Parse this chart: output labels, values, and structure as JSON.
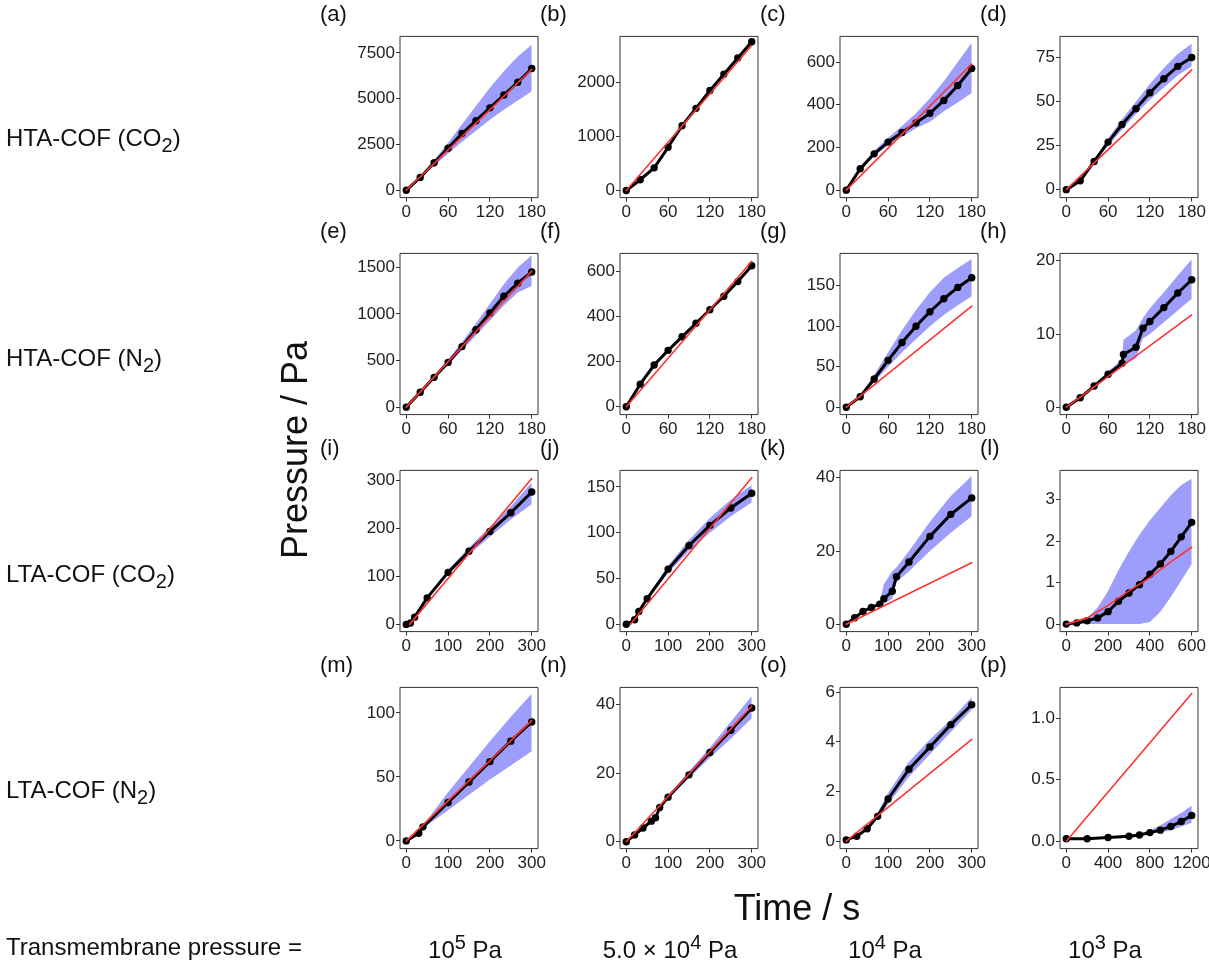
{
  "chart_data": [
    {
      "type": "line",
      "title": "(a)",
      "xlim": [
        -9,
        189
      ],
      "xticks": [
        0,
        60,
        120,
        180
      ],
      "ylim": [
        -400,
        8400
      ],
      "yticks": [
        0,
        2500,
        5000,
        7500
      ],
      "series": [
        {
          "color": "#000000",
          "marker": "circle",
          "x": [
            0,
            20,
            40,
            60,
            80,
            100,
            120,
            140,
            160,
            180
          ],
          "values": [
            0,
            700,
            1500,
            2300,
            3100,
            3800,
            4500,
            5200,
            5900,
            6650
          ],
          "lower": [
            0,
            650,
            1350,
            2000,
            2650,
            3250,
            3850,
            4400,
            4900,
            5400
          ],
          "upper": [
            0,
            750,
            1650,
            2600,
            3600,
            4600,
            5600,
            6500,
            7300,
            7950
          ]
        },
        {
          "color": "#ff3333",
          "x": [
            0,
            180
          ],
          "values": [
            0,
            6600
          ]
        }
      ]
    },
    {
      "type": "line",
      "title": "(b)",
      "xlim": [
        -9,
        189
      ],
      "xticks": [
        0,
        60,
        120,
        180
      ],
      "ylim": [
        -130,
        2850
      ],
      "yticks": [
        0,
        1000,
        2000
      ],
      "series": [
        {
          "color": "#000000",
          "marker": "circle",
          "x": [
            0,
            20,
            40,
            60,
            80,
            100,
            120,
            140,
            160,
            180
          ],
          "values": [
            0,
            200,
            420,
            800,
            1200,
            1520,
            1850,
            2150,
            2450,
            2750
          ]
        },
        {
          "color": "#ff3333",
          "x": [
            0,
            180
          ],
          "values": [
            0,
            2680
          ]
        }
      ]
    },
    {
      "type": "line",
      "title": "(c)",
      "xlim": [
        -9,
        189
      ],
      "xticks": [
        0,
        60,
        120,
        180
      ],
      "ylim": [
        -35,
        720
      ],
      "yticks": [
        0,
        200,
        400,
        600
      ],
      "series": [
        {
          "color": "#000000",
          "marker": "circle",
          "x": [
            0,
            20,
            40,
            60,
            80,
            100,
            120,
            140,
            160,
            180
          ],
          "values": [
            0,
            100,
            170,
            225,
            270,
            315,
            360,
            420,
            490,
            570
          ],
          "lower": [
            0,
            90,
            160,
            210,
            250,
            290,
            320,
            370,
            410,
            455
          ],
          "upper": [
            0,
            110,
            185,
            245,
            300,
            360,
            430,
            510,
            600,
            690
          ]
        },
        {
          "color": "#ff3333",
          "x": [
            0,
            180
          ],
          "values": [
            0,
            590
          ]
        }
      ]
    },
    {
      "type": "line",
      "title": "(d)",
      "xlim": [
        -9,
        189
      ],
      "xticks": [
        0,
        60,
        120,
        180
      ],
      "ylim": [
        -4.5,
        87
      ],
      "yticks": [
        0,
        25,
        50,
        75
      ],
      "series": [
        {
          "color": "#000000",
          "marker": "circle",
          "x": [
            0,
            20,
            40,
            60,
            80,
            100,
            120,
            140,
            160,
            180
          ],
          "values": [
            0,
            5,
            16,
            27,
            37,
            46,
            55,
            63,
            70,
            75
          ],
          "lower": [
            0,
            5,
            15,
            25,
            34,
            43,
            51,
            58,
            65,
            70
          ],
          "upper": [
            0,
            5,
            17,
            29,
            40,
            50,
            60,
            69,
            77,
            83
          ]
        },
        {
          "color": "#ff3333",
          "x": [
            0,
            180
          ],
          "values": [
            0,
            68
          ]
        }
      ]
    },
    {
      "type": "line",
      "title": "(e)",
      "xlim": [
        -9,
        189
      ],
      "xticks": [
        0,
        60,
        120,
        180
      ],
      "ylim": [
        -80,
        1650
      ],
      "yticks": [
        0,
        500,
        1000,
        1500
      ],
      "series": [
        {
          "color": "#000000",
          "marker": "circle",
          "x": [
            0,
            20,
            40,
            60,
            80,
            100,
            120,
            140,
            160,
            180
          ],
          "values": [
            0,
            160,
            320,
            480,
            650,
            830,
            1010,
            1190,
            1330,
            1450
          ],
          "lower": [
            0,
            160,
            310,
            450,
            610,
            770,
            930,
            1090,
            1230,
            1300
          ],
          "upper": [
            0,
            170,
            340,
            510,
            700,
            900,
            1110,
            1320,
            1500,
            1630
          ]
        },
        {
          "color": "#ff3333",
          "x": [
            0,
            180
          ],
          "values": [
            0,
            1460
          ]
        }
      ]
    },
    {
      "type": "line",
      "title": "(f)",
      "xlim": [
        -9,
        189
      ],
      "xticks": [
        0,
        60,
        120,
        180
      ],
      "ylim": [
        -35,
        680
      ],
      "yticks": [
        0,
        200,
        400,
        600
      ],
      "series": [
        {
          "color": "#000000",
          "marker": "circle",
          "x": [
            0,
            20,
            40,
            60,
            80,
            100,
            120,
            140,
            160,
            180
          ],
          "values": [
            0,
            100,
            185,
            250,
            310,
            370,
            430,
            490,
            555,
            625
          ]
        },
        {
          "color": "#ff3333",
          "x": [
            0,
            180
          ],
          "values": [
            0,
            645
          ]
        }
      ]
    },
    {
      "type": "line",
      "title": "(g)",
      "xlim": [
        -9,
        189
      ],
      "xticks": [
        0,
        60,
        120,
        180
      ],
      "ylim": [
        -9,
        190
      ],
      "yticks": [
        0,
        50,
        100,
        150
      ],
      "series": [
        {
          "color": "#000000",
          "marker": "circle",
          "x": [
            0,
            20,
            40,
            60,
            80,
            100,
            120,
            140,
            160,
            180
          ],
          "values": [
            0,
            13,
            35,
            58,
            80,
            100,
            118,
            134,
            148,
            160
          ],
          "lower": [
            0,
            12,
            31,
            50,
            68,
            84,
            100,
            114,
            126,
            137
          ],
          "upper": [
            0,
            14,
            40,
            68,
            95,
            120,
            142,
            160,
            172,
            183
          ]
        },
        {
          "color": "#ff3333",
          "x": [
            0,
            180
          ],
          "values": [
            0,
            125
          ]
        }
      ]
    },
    {
      "type": "line",
      "title": "(h)",
      "xlim": [
        -9,
        189
      ],
      "xticks": [
        0,
        60,
        120,
        180
      ],
      "ylim": [
        -1,
        21
      ],
      "yticks": [
        0,
        10,
        20
      ],
      "series": [
        {
          "color": "#000000",
          "marker": "circle",
          "x": [
            0,
            20,
            40,
            60,
            80,
            82,
            100,
            110,
            120,
            140,
            160,
            180
          ],
          "values": [
            0,
            1.3,
            2.9,
            4.5,
            6,
            7.2,
            8.2,
            10.8,
            11.7,
            13.6,
            15.6,
            17.4
          ],
          "lower": [
            0,
            1.2,
            2.7,
            4.1,
            5.5,
            5.8,
            6.7,
            9.4,
            10,
            11.6,
            13.2,
            14.8
          ],
          "upper": [
            0,
            1.4,
            3.1,
            4.9,
            6.5,
            9.2,
            10.5,
            12.2,
            13.5,
            15.7,
            18,
            20.2
          ]
        },
        {
          "color": "#ff3333",
          "x": [
            0,
            180
          ],
          "values": [
            0,
            12.6
          ]
        }
      ]
    },
    {
      "type": "line",
      "title": "(i)",
      "xlim": [
        -15,
        315
      ],
      "xticks": [
        0,
        100,
        200,
        300
      ],
      "ylim": [
        -15,
        320
      ],
      "yticks": [
        0,
        100,
        200,
        300
      ],
      "series": [
        {
          "color": "#000000",
          "marker": "circle",
          "x": [
            0,
            10,
            20,
            50,
            100,
            150,
            200,
            250,
            300
          ],
          "values": [
            0,
            3,
            15,
            55,
            108,
            152,
            193,
            232,
            275
          ],
          "lower": [
            0,
            3,
            14,
            52,
            103,
            145,
            182,
            218,
            250
          ],
          "upper": [
            0,
            3,
            16,
            58,
            113,
            160,
            203,
            245,
            295
          ]
        },
        {
          "color": "#ff3333",
          "x": [
            8,
            300
          ],
          "values": [
            0,
            303
          ]
        }
      ]
    },
    {
      "type": "line",
      "title": "(j)",
      "xlim": [
        -15,
        315
      ],
      "xticks": [
        0,
        100,
        200,
        300
      ],
      "ylim": [
        -8,
        168
      ],
      "yticks": [
        0,
        50,
        100,
        150
      ],
      "series": [
        {
          "color": "#000000",
          "marker": "circle",
          "x": [
            0,
            20,
            30,
            50,
            100,
            150,
            200,
            250,
            300
          ],
          "values": [
            0,
            5,
            14,
            28,
            60,
            86,
            108,
            127,
            143
          ],
          "lower": [
            0,
            4.5,
            13,
            26,
            56,
            80,
            100,
            118,
            133
          ],
          "upper": [
            0,
            5.5,
            15,
            30,
            64,
            92,
            116,
            136,
            152
          ]
        },
        {
          "color": "#ff3333",
          "x": [
            10,
            300
          ],
          "values": [
            0,
            160
          ]
        }
      ]
    },
    {
      "type": "line",
      "title": "(k)",
      "xlim": [
        -15,
        315
      ],
      "xticks": [
        0,
        100,
        200,
        300
      ],
      "ylim": [
        -2,
        42
      ],
      "yticks": [
        0,
        20,
        40
      ],
      "series": [
        {
          "color": "#000000",
          "marker": "circle",
          "x": [
            0,
            20,
            40,
            60,
            80,
            90,
            110,
            120,
            150,
            200,
            250,
            300
          ],
          "values": [
            0,
            1.8,
            3.5,
            4.6,
            5.5,
            7,
            9,
            13,
            17,
            24,
            30,
            34.5
          ],
          "lower": [
            0,
            1.7,
            3.3,
            4.3,
            5.1,
            5.5,
            7,
            11.5,
            14.5,
            20,
            25,
            29.5
          ],
          "upper": [
            0,
            1.9,
            3.7,
            4.9,
            5.9,
            11,
            14.5,
            15.5,
            20,
            28,
            35,
            40.5
          ]
        },
        {
          "color": "#ff3333",
          "x": [
            0,
            300
          ],
          "values": [
            0,
            16.8
          ]
        }
      ]
    },
    {
      "type": "line",
      "title": "(l)",
      "xlim": [
        -30,
        630
      ],
      "xticks": [
        0,
        200,
        400,
        600
      ],
      "ylim": [
        -0.18,
        3.7
      ],
      "yticks": [
        0,
        1,
        2,
        3
      ],
      "series": [
        {
          "color": "#000000",
          "marker": "circle",
          "x": [
            0,
            50,
            100,
            150,
            200,
            250,
            300,
            350,
            400,
            450,
            500,
            550,
            600
          ],
          "values": [
            0,
            0.03,
            0.08,
            0.15,
            0.3,
            0.55,
            0.75,
            0.95,
            1.2,
            1.45,
            1.75,
            2.1,
            2.45
          ],
          "lower": [
            0,
            0,
            0,
            0,
            0,
            0,
            0,
            0,
            0.05,
            0.3,
            0.65,
            1.05,
            1.45
          ],
          "upper": [
            0,
            0.05,
            0.15,
            0.4,
            0.8,
            1.3,
            1.75,
            2.15,
            2.5,
            2.8,
            3.1,
            3.35,
            3.5
          ]
        },
        {
          "color": "#ff3333",
          "x": [
            0,
            100,
            200,
            300,
            400,
            500,
            600
          ],
          "values": [
            0,
            0.15,
            0.45,
            0.8,
            1.12,
            1.5,
            1.85
          ]
        }
      ]
    },
    {
      "type": "line",
      "title": "(m)",
      "xlim": [
        -15,
        315
      ],
      "xticks": [
        0,
        100,
        200,
        300
      ],
      "ylim": [
        -6,
        120
      ],
      "yticks": [
        0,
        50,
        100
      ],
      "series": [
        {
          "color": "#000000",
          "marker": "circle",
          "x": [
            0,
            30,
            40,
            100,
            150,
            200,
            250,
            300
          ],
          "values": [
            0,
            6,
            11,
            30,
            46,
            62,
            78,
            93
          ],
          "lower": [
            0,
            6,
            10,
            24,
            36,
            48,
            59,
            70
          ],
          "upper": [
            0,
            7,
            12,
            38,
            58,
            78,
            97,
            115
          ]
        },
        {
          "color": "#ff3333",
          "x": [
            0,
            300
          ],
          "values": [
            0,
            94
          ]
        }
      ]
    },
    {
      "type": "line",
      "title": "(n)",
      "xlim": [
        -15,
        315
      ],
      "xticks": [
        0,
        100,
        200,
        300
      ],
      "ylim": [
        -2,
        45
      ],
      "yticks": [
        0,
        20,
        40
      ],
      "series": [
        {
          "color": "#000000",
          "marker": "circle",
          "x": [
            0,
            20,
            40,
            60,
            70,
            80,
            100,
            150,
            200,
            250,
            300
          ],
          "values": [
            0,
            2,
            4,
            6,
            7,
            10,
            13,
            19.5,
            26,
            32.5,
            39
          ],
          "lower": [
            0,
            2,
            4,
            6,
            7,
            10,
            12.7,
            18.5,
            24.5,
            30,
            36
          ],
          "upper": [
            0,
            2,
            4,
            6,
            7,
            10,
            13.3,
            20.5,
            27.5,
            35,
            42.5
          ]
        },
        {
          "color": "#ff3333",
          "x": [
            0,
            300
          ],
          "values": [
            0,
            39.5
          ]
        }
      ]
    },
    {
      "type": "line",
      "title": "(o)",
      "xlim": [
        -15,
        315
      ],
      "xticks": [
        0,
        100,
        200,
        300
      ],
      "ylim": [
        -0.3,
        6.2
      ],
      "yticks": [
        0,
        2,
        4,
        6
      ],
      "series": [
        {
          "color": "#000000",
          "marker": "circle",
          "x": [
            0,
            25,
            50,
            75,
            100,
            150,
            200,
            250,
            300
          ],
          "values": [
            0.05,
            0.2,
            0.5,
            1,
            1.7,
            2.9,
            3.8,
            4.7,
            5.5
          ],
          "lower": [
            0.05,
            0.18,
            0.45,
            0.9,
            1.5,
            2.6,
            3.5,
            4.4,
            5.3
          ],
          "upper": [
            0.05,
            0.22,
            0.55,
            1.15,
            1.95,
            3.2,
            4.1,
            4.9,
            5.8
          ]
        },
        {
          "color": "#ff3333",
          "x": [
            0,
            300
          ],
          "values": [
            0,
            4.1
          ]
        }
      ]
    },
    {
      "type": "line",
      "title": "(p)",
      "xlim": [
        -60,
        1260
      ],
      "xticks": [
        0,
        400,
        800,
        1200
      ],
      "ylim": [
        -0.06,
        1.25
      ],
      "yticks": [
        {
          "value": 0,
          "label": "0.0"
        },
        {
          "value": 0.5,
          "label": "0.5"
        },
        {
          "value": 1,
          "label": "1.0"
        }
      ],
      "series": [
        {
          "color": "#000000",
          "marker": "circle",
          "x": [
            0,
            200,
            400,
            600,
            700,
            800,
            900,
            1000,
            1100,
            1200
          ],
          "values": [
            0.02,
            0.02,
            0.03,
            0.04,
            0.05,
            0.07,
            0.09,
            0.12,
            0.16,
            0.21
          ],
          "lower": [
            0.02,
            0.02,
            0.03,
            0.04,
            0.05,
            0.06,
            0.07,
            0.09,
            0.12,
            0.15
          ],
          "upper": [
            0.02,
            0.02,
            0.03,
            0.05,
            0.06,
            0.09,
            0.13,
            0.18,
            0.23,
            0.29
          ]
        },
        {
          "color": "#ff3333",
          "x": [
            0,
            1200
          ],
          "values": [
            0,
            1.2
          ]
        }
      ]
    },
    {
      "type": "other",
      "title": "Transmembrane pressure =",
      "xlabel": "Time / s",
      "ylabel": "Pressure / Pa",
      "annotations": [
        "HTA-COF (CO$_{2}$)",
        "HTA-COF (N$_{2}$)",
        "LTA-COF (CO$_{2}$)",
        "LTA-COF (N$_{2}$)",
        "10$^{5}$ Pa",
        "5.0 × 10$^{4}$ Pa",
        "10$^{4}$ Pa",
        "10$^{3}$ Pa"
      ]
    }
  ]
}
